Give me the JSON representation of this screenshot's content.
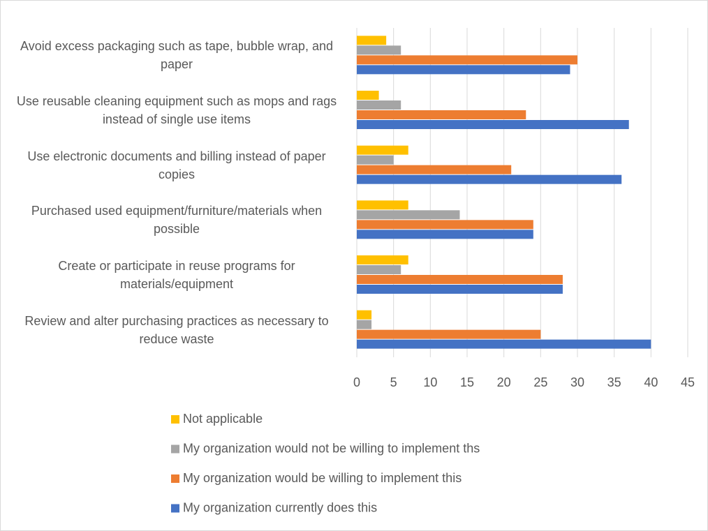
{
  "chart_data": {
    "type": "bar",
    "orientation": "horizontal",
    "categories": [
      "Avoid excess packaging such as tape, bubble wrap, and paper",
      "Use reusable cleaning equipment such as mops and rags instead of single use items",
      "Use electronic documents and billing instead of paper copies",
      "Purchased used equipment/furniture/materials when possible",
      "Create or participate in reuse programs for materials/equipment",
      "Review and alter purchasing practices as necessary to reduce waste"
    ],
    "series": [
      {
        "name": "Not applicable",
        "color": "#ffc000",
        "values": [
          4,
          3,
          7,
          7,
          7,
          2
        ]
      },
      {
        "name": "My organization would not be willing to implement ths",
        "color": "#a5a5a5",
        "values": [
          6,
          6,
          5,
          14,
          6,
          2
        ]
      },
      {
        "name": "My organization would be willing to implement this",
        "color": "#ed7d31",
        "values": [
          30,
          23,
          21,
          24,
          28,
          25
        ]
      },
      {
        "name": "My organization currently does this",
        "color": "#4472c4",
        "values": [
          29,
          37,
          36,
          24,
          28,
          40
        ]
      }
    ],
    "xlim": [
      0,
      45
    ],
    "xticks": [
      0,
      5,
      10,
      15,
      20,
      25,
      30,
      35,
      40,
      45
    ],
    "grid": true,
    "legend": "bottom"
  }
}
